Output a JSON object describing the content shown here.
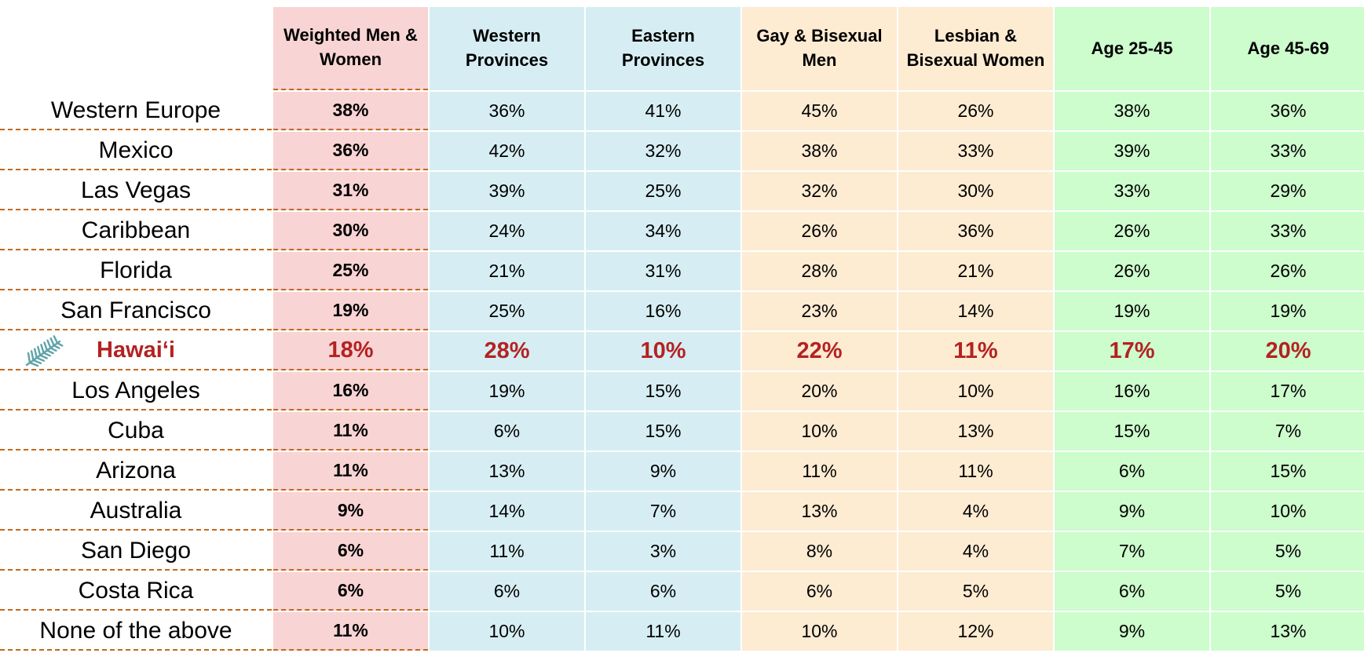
{
  "table": {
    "columns": [
      "Weighted Men & Women",
      "Western Provinces",
      "Eastern Provinces",
      "Gay & Bisexual Men",
      "Lesbian & Bisexual Women",
      "Age 25-45",
      "Age 45-69"
    ],
    "rows": [
      {
        "label": "Western Europe",
        "values": [
          "38%",
          "36%",
          "41%",
          "45%",
          "26%",
          "38%",
          "36%"
        ]
      },
      {
        "label": "Mexico",
        "values": [
          "36%",
          "42%",
          "32%",
          "38%",
          "33%",
          "39%",
          "33%"
        ]
      },
      {
        "label": "Las Vegas",
        "values": [
          "31%",
          "39%",
          "25%",
          "32%",
          "30%",
          "33%",
          "29%"
        ]
      },
      {
        "label": "Caribbean",
        "values": [
          "30%",
          "24%",
          "34%",
          "26%",
          "36%",
          "26%",
          "33%"
        ]
      },
      {
        "label": "Florida",
        "values": [
          "25%",
          "21%",
          "31%",
          "28%",
          "21%",
          "26%",
          "26%"
        ]
      },
      {
        "label": "San Francisco",
        "values": [
          "19%",
          "25%",
          "16%",
          "23%",
          "14%",
          "19%",
          "19%"
        ]
      },
      {
        "label": "Hawai‘i",
        "highlight": true,
        "values": [
          "18%",
          "28%",
          "10%",
          "22%",
          "11%",
          "17%",
          "20%"
        ]
      },
      {
        "label": "Los Angeles",
        "values": [
          "16%",
          "19%",
          "15%",
          "20%",
          "10%",
          "16%",
          "17%"
        ]
      },
      {
        "label": "Cuba",
        "values": [
          "11%",
          "6%",
          "15%",
          "10%",
          "13%",
          "15%",
          "7%"
        ]
      },
      {
        "label": "Arizona",
        "values": [
          "11%",
          "13%",
          "9%",
          "11%",
          "11%",
          "6%",
          "15%"
        ]
      },
      {
        "label": "Australia",
        "values": [
          "9%",
          "14%",
          "7%",
          "13%",
          "4%",
          "9%",
          "10%"
        ]
      },
      {
        "label": "San Diego",
        "values": [
          "6%",
          "11%",
          "3%",
          "8%",
          "4%",
          "7%",
          "5%"
        ]
      },
      {
        "label": "Costa Rica",
        "values": [
          "6%",
          "6%",
          "6%",
          "6%",
          "5%",
          "6%",
          "5%"
        ]
      },
      {
        "label": "None of the above",
        "values": [
          "11%",
          "10%",
          "11%",
          "10%",
          "12%",
          "9%",
          "13%"
        ]
      }
    ]
  }
}
